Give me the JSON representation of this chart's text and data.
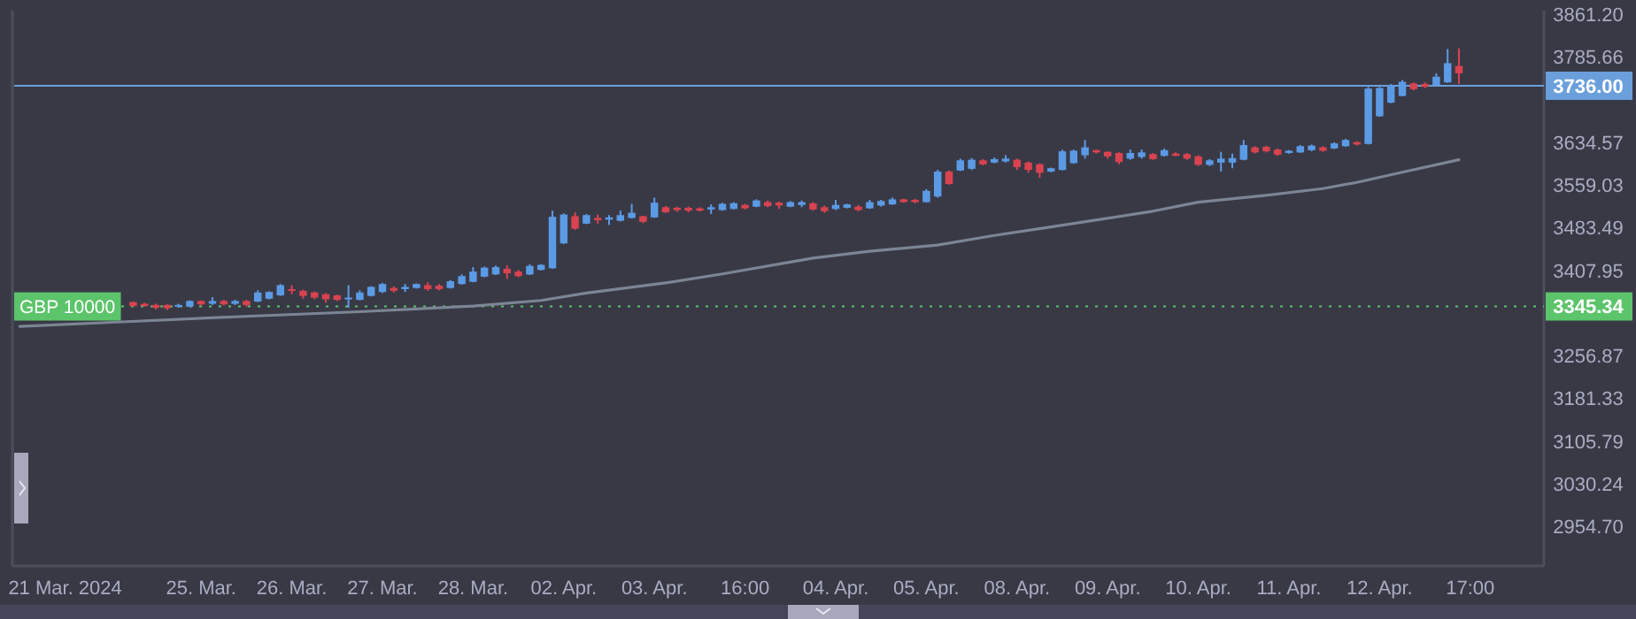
{
  "chart_data": {
    "type": "candlestick",
    "categories": [
      null,
      null,
      null,
      null,
      "21 Mar. 2024",
      null,
      null,
      null,
      null,
      null,
      null,
      null,
      null,
      null,
      null,
      null,
      "25. Mar.",
      null,
      null,
      null,
      null,
      null,
      null,
      null,
      "26. Mar.",
      null,
      null,
      null,
      null,
      null,
      null,
      null,
      "27. Mar.",
      null,
      null,
      null,
      null,
      null,
      null,
      null,
      "28. Mar.",
      null,
      null,
      null,
      null,
      null,
      null,
      null,
      "02. Apr.",
      null,
      null,
      null,
      null,
      null,
      null,
      null,
      "03. Apr.",
      null,
      null,
      null,
      null,
      null,
      null,
      null,
      "16:00",
      null,
      null,
      null,
      null,
      null,
      null,
      null,
      "04. Apr.",
      null,
      null,
      null,
      null,
      null,
      null,
      null,
      "05. Apr.",
      null,
      null,
      null,
      null,
      null,
      null,
      null,
      "08. Apr.",
      null,
      null,
      null,
      null,
      null,
      null,
      null,
      "09. Apr.",
      null,
      null,
      null,
      null,
      null,
      null,
      null,
      "10. Apr.",
      null,
      null,
      null,
      null,
      null,
      null,
      null,
      "11. Apr.",
      null,
      null,
      null,
      null,
      null,
      null,
      null,
      "12. Apr.",
      null,
      null,
      null,
      null,
      null,
      null,
      null,
      "17:00",
      null,
      null,
      null,
      null,
      null,
      null
    ],
    "ylim": [
      2886,
      3869
    ],
    "yticks": [
      {
        "value": 2954.7,
        "label": "2954.70"
      },
      {
        "value": 3030.24,
        "label": "3030.24"
      },
      {
        "value": 3105.79,
        "label": "3105.79"
      },
      {
        "value": 3181.33,
        "label": "3181.33"
      },
      {
        "value": 3256.87,
        "label": "3256.87"
      },
      {
        "value": 3407.95,
        "label": "3407.95"
      },
      {
        "value": 3483.49,
        "label": "3483.49"
      },
      {
        "value": 3559.03,
        "label": "3559.03"
      },
      {
        "value": 3634.57,
        "label": "3634.57"
      },
      {
        "value": 3785.66,
        "label": "3785.66"
      },
      {
        "value": 3861.2,
        "label": "3861.20"
      }
    ],
    "ref_lines": [
      {
        "axis": "y",
        "value": 3736.0,
        "label": "3736.00",
        "color": "#6a9fdc",
        "line_style": "solid"
      },
      {
        "axis": "y",
        "value": 3345.34,
        "label": "3345.34",
        "color": "#5cc46a",
        "line_style": "dotted"
      }
    ],
    "annotations": [
      {
        "text": "GBP 10000",
        "y": 3345.34
      }
    ],
    "series": [
      {
        "ohlc": [
          null,
          null,
          null,
          null,
          null,
          null,
          null,
          null,
          null,
          null,
          [
            3353,
            3354,
            3345,
            3346
          ],
          [
            3350,
            3352,
            3345,
            3346
          ],
          [
            3348,
            3350,
            3340,
            3343
          ],
          [
            3348,
            3349,
            3339,
            3342
          ],
          [
            3345,
            3350,
            3343,
            3348
          ],
          [
            3345,
            3356,
            3344,
            3355
          ],
          [
            3355,
            3356,
            3347,
            3349
          ],
          [
            3350,
            3362,
            3348,
            3355
          ],
          [
            3355,
            3357,
            3347,
            3349
          ],
          [
            3350,
            3357,
            3348,
            3355
          ],
          [
            3355,
            3357,
            3345,
            3348
          ],
          [
            3354,
            3374,
            3353,
            3370
          ],
          [
            3359,
            3372,
            3358,
            3371
          ],
          [
            3365,
            3385,
            3364,
            3383
          ],
          [
            3376,
            3383,
            3367,
            3373
          ],
          [
            3373,
            3375,
            3359,
            3364
          ],
          [
            3370,
            3372,
            3358,
            3361
          ],
          [
            3367,
            3369,
            3352,
            3358
          ],
          [
            3365,
            3366,
            3355,
            3357
          ],
          [
            3358,
            3383,
            3343,
            3361
          ],
          [
            3357,
            3374,
            3356,
            3370
          ],
          [
            3364,
            3381,
            3363,
            3380
          ],
          [
            3371,
            3387,
            3369,
            3385
          ],
          [
            3378,
            3381,
            3370,
            3373
          ],
          [
            3376,
            3385,
            3371,
            3380
          ],
          [
            3378,
            3386,
            3377,
            3385
          ],
          [
            3383,
            3388,
            3373,
            3376
          ],
          [
            3382,
            3385,
            3374,
            3376
          ],
          [
            3378,
            3392,
            3377,
            3390
          ],
          [
            3385,
            3402,
            3384,
            3399
          ],
          [
            3389,
            3415,
            3388,
            3407
          ],
          [
            3398,
            3416,
            3397,
            3414
          ],
          [
            3402,
            3418,
            3401,
            3415
          ],
          [
            3412,
            3418,
            3394,
            3404
          ],
          [
            3407,
            3410,
            3397,
            3399
          ],
          [
            3402,
            3420,
            3401,
            3417
          ],
          [
            3410,
            3420,
            3409,
            3419
          ],
          [
            3413,
            3515,
            3412,
            3504
          ],
          [
            3457,
            3510,
            3456,
            3508
          ],
          [
            3505,
            3512,
            3481,
            3483
          ],
          [
            3492,
            3509,
            3491,
            3507
          ],
          [
            3502,
            3508,
            3492,
            3498
          ],
          [
            3499,
            3507,
            3490,
            3503
          ],
          [
            3497,
            3515,
            3496,
            3507
          ],
          [
            3502,
            3527,
            3501,
            3511
          ],
          [
            3505,
            3506,
            3493,
            3495
          ],
          [
            3503,
            3538,
            3502,
            3529
          ],
          [
            3521,
            3523,
            3511,
            3512
          ],
          [
            3520,
            3522,
            3513,
            3516
          ],
          [
            3520,
            3522,
            3512,
            3515
          ],
          [
            3519,
            3521,
            3513,
            3515
          ],
          [
            3517,
            3526,
            3509,
            3521
          ],
          [
            3516,
            3529,
            3515,
            3527
          ],
          [
            3518,
            3530,
            3517,
            3528
          ],
          [
            3525,
            3527,
            3517,
            3519
          ],
          [
            3522,
            3535,
            3521,
            3533
          ],
          [
            3530,
            3533,
            3521,
            3523
          ],
          [
            3529,
            3531,
            3518,
            3524
          ],
          [
            3522,
            3532,
            3521,
            3530
          ],
          [
            3525,
            3533,
            3521,
            3530
          ],
          [
            3528,
            3530,
            3515,
            3517
          ],
          [
            3521,
            3524,
            3511,
            3514
          ],
          [
            3518,
            3534,
            3516,
            3525
          ],
          [
            3520,
            3527,
            3519,
            3526
          ],
          [
            3522,
            3525,
            3514,
            3516
          ],
          [
            3519,
            3534,
            3518,
            3530
          ],
          [
            3524,
            3534,
            3522,
            3532
          ],
          [
            3526,
            3538,
            3525,
            3535
          ],
          [
            3535,
            3536,
            3529,
            3530
          ],
          [
            3534,
            3536,
            3528,
            3530
          ],
          [
            3530,
            3553,
            3529,
            3550
          ],
          [
            3540,
            3587,
            3538,
            3584
          ],
          [
            3584,
            3586,
            3561,
            3562
          ],
          [
            3586,
            3607,
            3585,
            3604
          ],
          [
            3589,
            3608,
            3587,
            3605
          ],
          [
            3604,
            3606,
            3595,
            3597
          ],
          [
            3600,
            3609,
            3599,
            3606
          ],
          [
            3602,
            3613,
            3600,
            3607
          ],
          [
            3605,
            3607,
            3587,
            3592
          ],
          [
            3600,
            3602,
            3582,
            3587
          ],
          [
            3597,
            3599,
            3573,
            3582
          ],
          [
            3584,
            3591,
            3583,
            3590
          ],
          [
            3587,
            3623,
            3586,
            3620
          ],
          [
            3599,
            3623,
            3598,
            3621
          ],
          [
            3613,
            3640,
            3607,
            3627
          ],
          [
            3622,
            3623,
            3616,
            3618
          ],
          [
            3619,
            3620,
            3607,
            3611
          ],
          [
            3617,
            3618,
            3597,
            3601
          ],
          [
            3607,
            3623,
            3605,
            3617
          ],
          [
            3610,
            3623,
            3607,
            3618
          ],
          [
            3615,
            3617,
            3605,
            3606
          ],
          [
            3612,
            3625,
            3611,
            3622
          ],
          [
            3616,
            3618,
            3611,
            3612
          ],
          [
            3615,
            3617,
            3605,
            3607
          ],
          [
            3611,
            3613,
            3594,
            3596
          ],
          [
            3596,
            3606,
            3594,
            3604
          ],
          [
            3600,
            3619,
            3584,
            3607
          ],
          [
            3600,
            3616,
            3590,
            3608
          ],
          [
            3605,
            3640,
            3604,
            3631
          ],
          [
            3627,
            3629,
            3616,
            3618
          ],
          [
            3628,
            3630,
            3618,
            3620
          ],
          [
            3623,
            3625,
            3612,
            3614
          ],
          [
            3617,
            3622,
            3616,
            3621
          ],
          [
            3618,
            3631,
            3617,
            3629
          ],
          [
            3622,
            3632,
            3620,
            3630
          ],
          [
            3627,
            3629,
            3619,
            3621
          ],
          [
            3625,
            3636,
            3624,
            3634
          ],
          [
            3629,
            3642,
            3628,
            3640
          ],
          [
            3636,
            3638,
            3630,
            3632
          ],
          [
            3633,
            3734,
            3632,
            3731
          ],
          [
            3682,
            3734,
            3681,
            3732
          ],
          [
            3706,
            3739,
            3705,
            3736
          ],
          [
            3718,
            3746,
            3717,
            3743
          ],
          [
            3740,
            3742,
            3728,
            3730
          ],
          [
            3739,
            3742,
            3732,
            3734
          ],
          [
            3737,
            3758,
            3735,
            3752
          ],
          [
            3742,
            3801,
            3741,
            3776
          ],
          [
            3771,
            3802,
            3739,
            3758
          ],
          null,
          null,
          null,
          null,
          null,
          null,
          null
        ],
        "colors": [
          null,
          null,
          null,
          null,
          null,
          null,
          null,
          null,
          null,
          null,
          "#d9434f",
          "#d9434f",
          "#d9434f",
          "#d9434f",
          "#5b9be6",
          "#5b9be6",
          "#d9434f",
          "#5b9be6",
          "#d9434f",
          "#5b9be6",
          "#d9434f",
          "#5b9be6",
          "#5b9be6",
          "#5b9be6",
          "#d9434f",
          "#d9434f",
          "#d9434f",
          "#d9434f",
          "#d9434f",
          "#5b9be6",
          "#5b9be6",
          "#5b9be6",
          "#5b9be6",
          "#d9434f",
          "#5b9be6",
          "#5b9be6",
          "#d9434f",
          "#d9434f",
          "#5b9be6",
          "#5b9be6",
          "#5b9be6",
          "#5b9be6",
          "#5b9be6",
          "#d9434f",
          "#d9434f",
          "#5b9be6",
          "#5b9be6",
          "#5b9be6",
          "#5b9be6",
          "#d9434f",
          "#5b9be6",
          "#d9434f",
          "#5b9be6",
          "#5b9be6",
          "#5b9be6",
          "#d9434f",
          "#5b9be6",
          "#d9434f",
          "#d9434f",
          "#d9434f",
          "#d9434f",
          "#5b9be6",
          "#5b9be6",
          "#5b9be6",
          "#d9434f",
          "#5b9be6",
          "#d9434f",
          "#d9434f",
          "#5b9be6",
          "#5b9be6",
          "#d9434f",
          "#d9434f",
          "#5b9be6",
          "#5b9be6",
          "#d9434f",
          "#5b9be6",
          "#5b9be6",
          "#5b9be6",
          "#d9434f",
          "#d9434f",
          "#5b9be6",
          "#5b9be6",
          "#d9434f",
          "#5b9be6",
          "#5b9be6",
          "#d9434f",
          "#5b9be6",
          "#5b9be6",
          "#d9434f",
          "#d9434f",
          "#d9434f",
          "#5b9be6",
          "#5b9be6",
          "#5b9be6",
          "#5b9be6",
          "#d9434f",
          "#d9434f",
          "#d9434f",
          "#5b9be6",
          "#5b9be6",
          "#d9434f",
          "#5b9be6",
          "#d9434f",
          "#d9434f",
          "#d9434f",
          "#5b9be6",
          "#5b9be6",
          "#5b9be6",
          "#5b9be6",
          "#d9434f",
          "#d9434f",
          "#d9434f",
          "#5b9be6",
          "#5b9be6",
          "#5b9be6",
          "#d9434f",
          "#5b9be6",
          "#5b9be6",
          "#d9434f",
          "#5b9be6",
          "#5b9be6",
          "#5b9be6",
          "#5b9be6",
          "#d9434f",
          "#d9434f",
          "#5b9be6",
          "#5b9be6",
          "#d9434f",
          null,
          null,
          null,
          null,
          null,
          null,
          null
        ]
      },
      {
        "type": "line",
        "color": "#7b8594",
        "values": [
          3310,
          null,
          null,
          null,
          null,
          null,
          null,
          null,
          null,
          3318,
          null,
          null,
          null,
          null,
          null,
          null,
          null,
          null,
          null,
          3327,
          null,
          null,
          null,
          null,
          null,
          null,
          null,
          null,
          null,
          null,
          3336,
          null,
          null,
          null,
          null,
          null,
          null,
          null,
          null,
          null,
          3346,
          null,
          null,
          null,
          null,
          null,
          3356,
          null,
          null,
          null,
          3369,
          null,
          null,
          null,
          null,
          null,
          null,
          3387,
          null,
          null,
          null,
          null,
          3403,
          null,
          null,
          null,
          null,
          null,
          null,
          null,
          3431,
          null,
          null,
          null,
          null,
          3443,
          null,
          null,
          null,
          null,
          null,
          3454,
          null,
          null,
          null,
          null,
          3471,
          null,
          null,
          null,
          null,
          3486,
          null,
          null,
          null,
          null,
          null,
          null,
          null,
          null,
          3514,
          null,
          null,
          null,
          3530,
          null,
          null,
          null,
          null,
          null,
          3542,
          null,
          null,
          null,
          null,
          3554,
          null,
          null,
          3565,
          null,
          null,
          null,
          3583,
          null,
          null,
          null,
          null,
          3605,
          null,
          null,
          null,
          null,
          null,
          null,
          null
        ]
      }
    ]
  }
}
